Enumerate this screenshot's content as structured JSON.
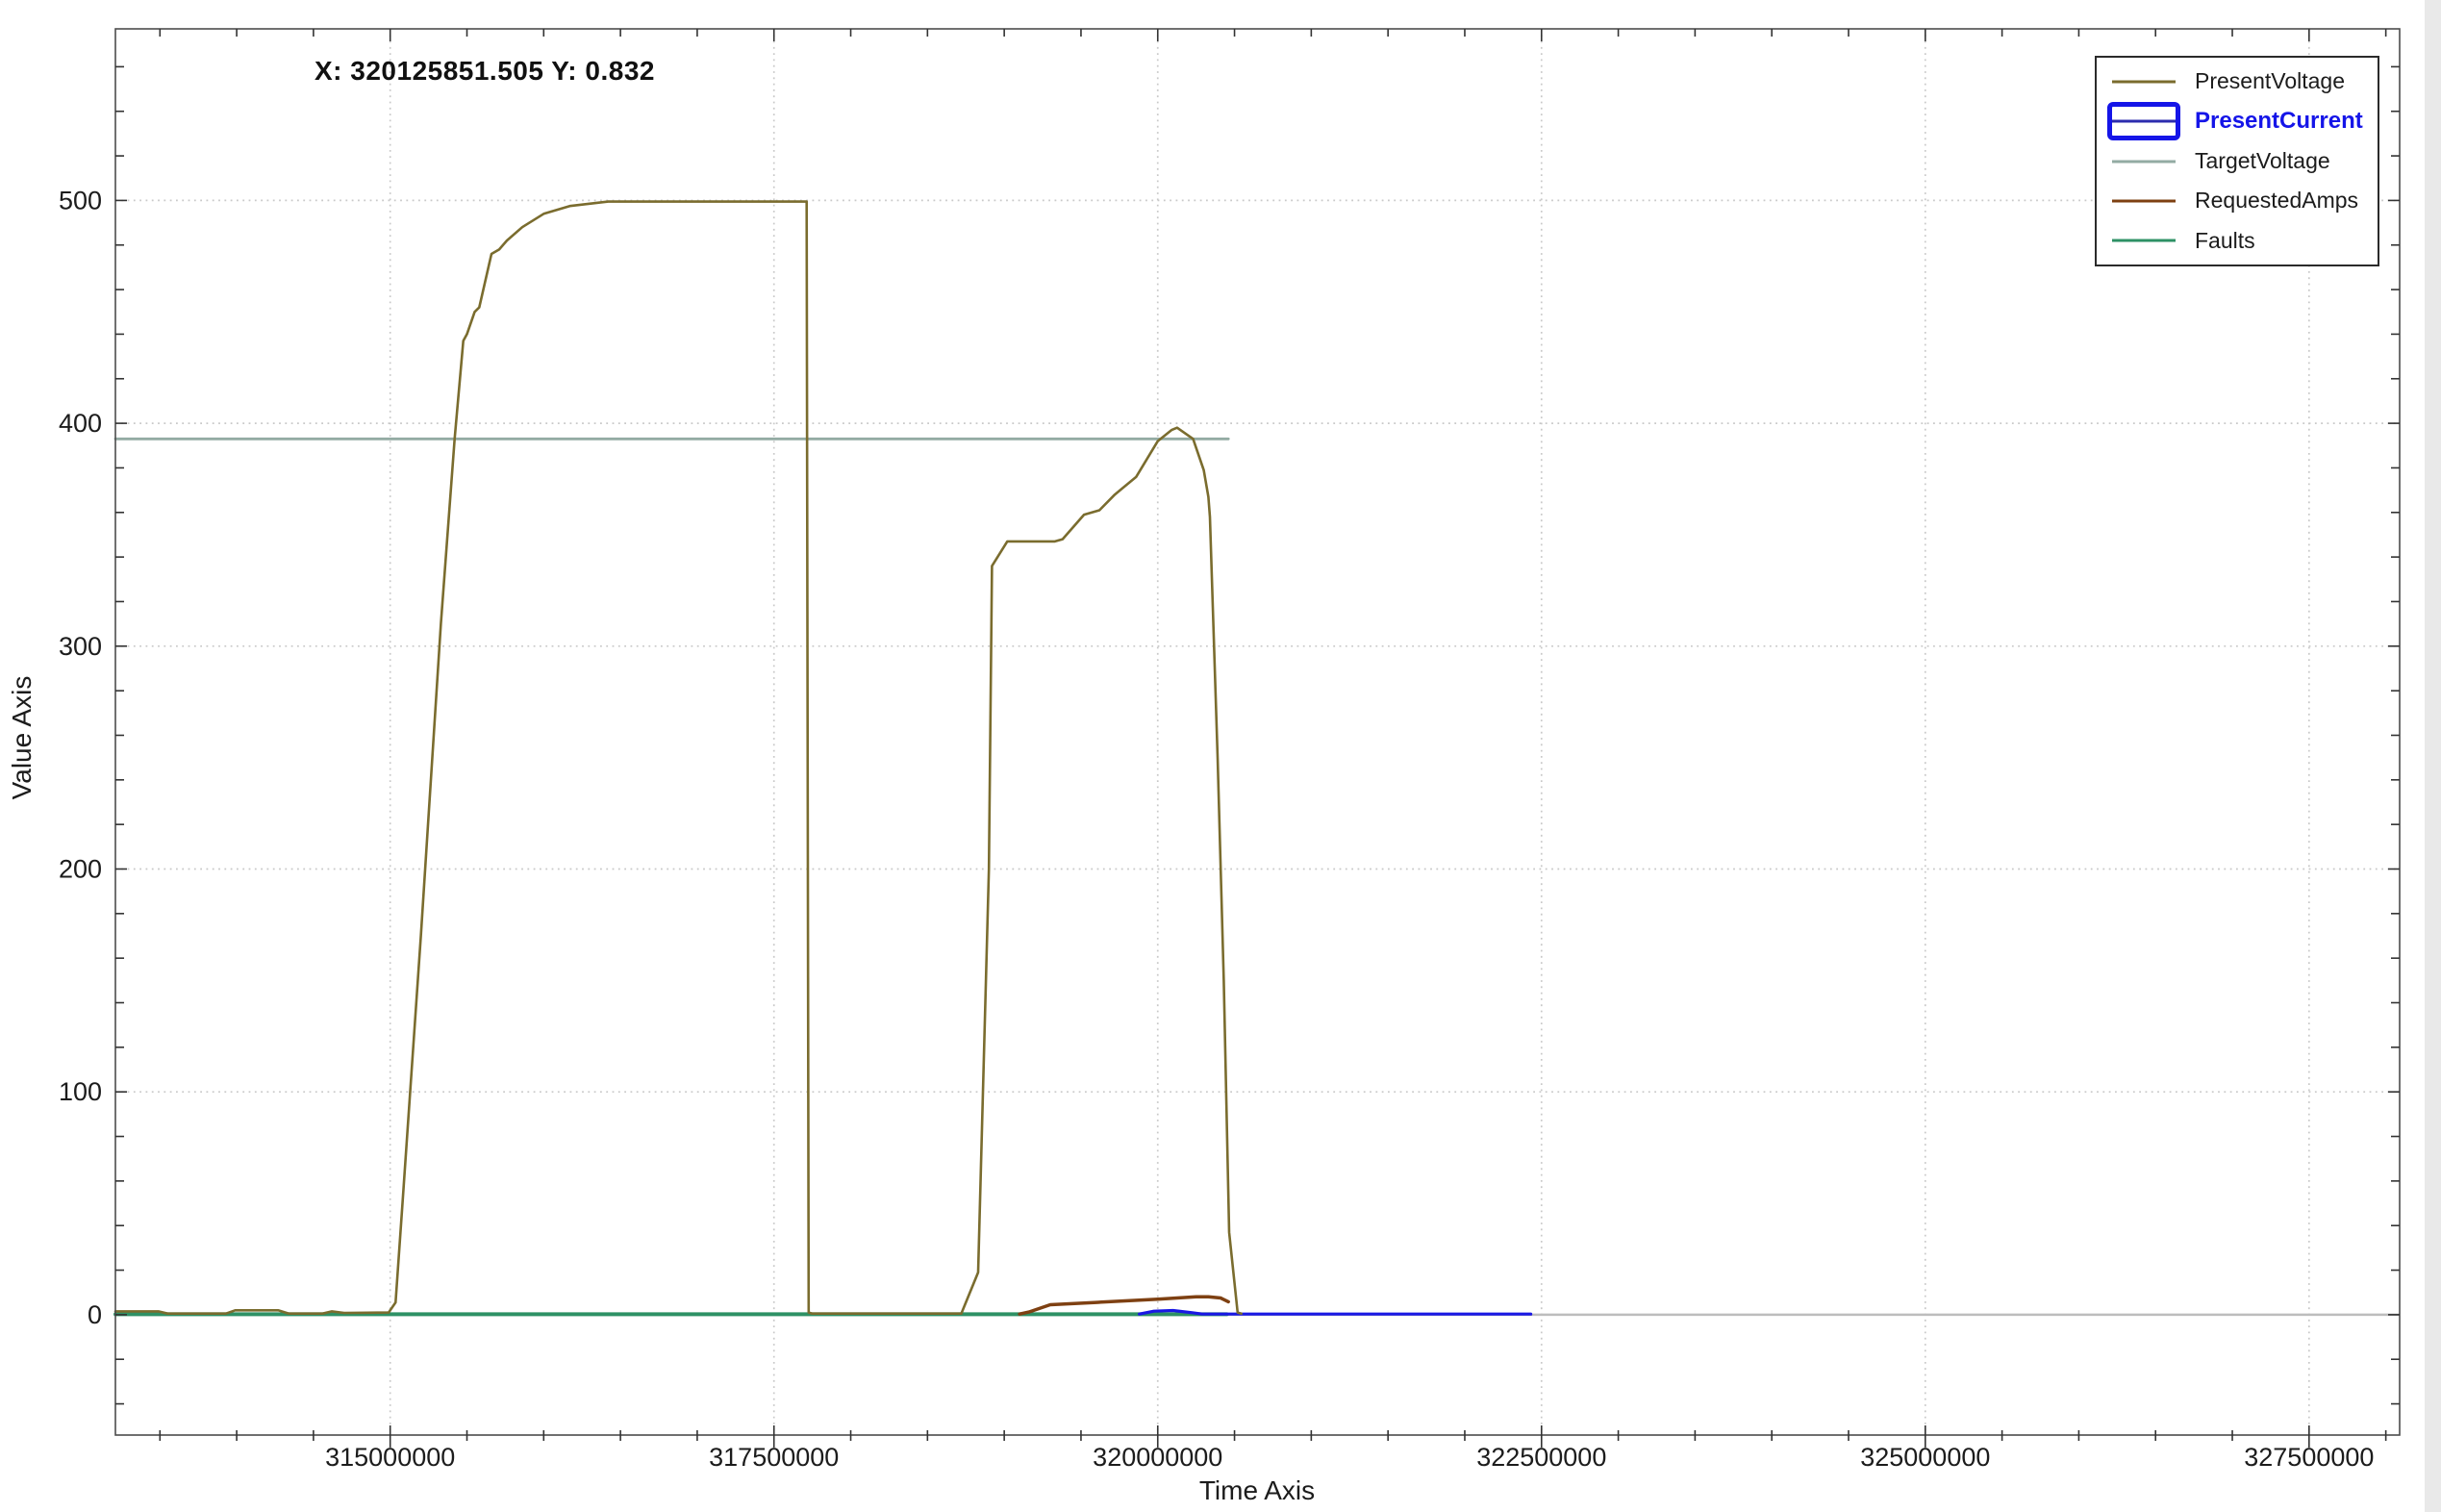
{
  "title": {
    "cursor_readout": "X: 320125851.505 Y: 0.832"
  },
  "legend": {
    "position": "top-right",
    "selected_box_color": "#1515e8",
    "selected_inner_line_color": "#2b2bae",
    "selected_text_color": "#1515e8",
    "items": [
      {
        "label": "PresentVoltage",
        "color": "#7a6c2e",
        "selected": false
      },
      {
        "label": "PresentCurrent",
        "color": "#2b2bae",
        "selected": true
      },
      {
        "label": "TargetVoltage",
        "color": "#93aba3",
        "selected": false
      },
      {
        "label": "RequestedAmps",
        "color": "#7e4012",
        "selected": false
      },
      {
        "label": "Faults",
        "color": "#2e9165",
        "selected": false
      }
    ]
  },
  "chart_data": {
    "type": "line",
    "xlabel": "Time Axis",
    "ylabel": "Value Axis",
    "x_range": [
      313210000,
      328090000
    ],
    "y_range": [
      -54,
      577
    ],
    "x_ticks": [
      315000000,
      317500000,
      320000000,
      322500000,
      325000000,
      327500000
    ],
    "y_ticks": [
      0,
      100,
      200,
      300,
      400,
      500
    ],
    "x_minor_step": 500000,
    "y_minor_step": 20,
    "grid": "major-dotted",
    "zero_line_color": "#bdbdbd",
    "grid_color": "#c9c9c9",
    "border_color": "#4d4d4d",
    "tick_color": "#333333",
    "tick_label_color": "#1c1c1c",
    "legend_position": "top-right",
    "series": [
      {
        "name": "TargetVoltage",
        "color": "#93aba3",
        "width": 2.8,
        "points": [
          [
            313210000,
            393
          ],
          [
            320460000,
            393
          ]
        ]
      },
      {
        "name": "Faults",
        "color": "#2e9165",
        "width": 4,
        "points": [
          [
            313210000,
            0.2
          ],
          [
            320450000,
            0.2
          ]
        ]
      },
      {
        "name": "RequestedAmps",
        "color": "#7e4012",
        "width": 3.5,
        "points": [
          [
            319100000,
            0.3
          ],
          [
            319160000,
            1.2
          ],
          [
            319300000,
            4.5
          ],
          [
            319600000,
            5.5
          ],
          [
            320000000,
            7
          ],
          [
            320250000,
            8
          ],
          [
            320330000,
            8
          ],
          [
            320410000,
            7.5
          ],
          [
            320460000,
            5.8
          ]
        ]
      },
      {
        "name": "PresentCurrent",
        "color": "#1a18e4",
        "width": 3.2,
        "points": [
          [
            319880000,
            0.3
          ],
          [
            319975000,
            1.6
          ],
          [
            320100000,
            1.9
          ],
          [
            320225000,
            0.9
          ],
          [
            320290000,
            0.3
          ],
          [
            322430000,
            0.3
          ]
        ]
      },
      {
        "name": "PresentVoltage",
        "color": "#7a6c2e",
        "width": 2.6,
        "points": [
          [
            313210000,
            1.5
          ],
          [
            313490000,
            1.5
          ],
          [
            313550000,
            0.5
          ],
          [
            313930000,
            0.5
          ],
          [
            313990000,
            2
          ],
          [
            314270000,
            2
          ],
          [
            314340000,
            0.5
          ],
          [
            314560000,
            0.5
          ],
          [
            314620000,
            1.5
          ],
          [
            314700000,
            0.8
          ],
          [
            314990000,
            1
          ],
          [
            315020000,
            4
          ],
          [
            315035000,
            5.5
          ],
          [
            315080000,
            50
          ],
          [
            315200000,
            170
          ],
          [
            315330000,
            310
          ],
          [
            315420000,
            393
          ],
          [
            315476000,
            437
          ],
          [
            315500000,
            440
          ],
          [
            315550000,
            450
          ],
          [
            315580000,
            452
          ],
          [
            315660000,
            476
          ],
          [
            315710000,
            478
          ],
          [
            315760000,
            482
          ],
          [
            315860000,
            488
          ],
          [
            316000000,
            494
          ],
          [
            316170000,
            497.5
          ],
          [
            316420000,
            499.5
          ],
          [
            317713000,
            499.5
          ],
          [
            317726000,
            1
          ],
          [
            317750000,
            0.5
          ],
          [
            318720000,
            0.5
          ],
          [
            318830000,
            19
          ],
          [
            318900000,
            200
          ],
          [
            318920000,
            336
          ],
          [
            319020000,
            347
          ],
          [
            319330000,
            347
          ],
          [
            319380000,
            348
          ],
          [
            319520000,
            359
          ],
          [
            319620000,
            361
          ],
          [
            319720000,
            368
          ],
          [
            319860000,
            376
          ],
          [
            320000000,
            392
          ],
          [
            320090000,
            397
          ],
          [
            320126000,
            398
          ],
          [
            320230000,
            393
          ],
          [
            320300000,
            379
          ],
          [
            320330000,
            367
          ],
          [
            320340000,
            358
          ],
          [
            320390000,
            250
          ],
          [
            320430000,
            150
          ],
          [
            320465000,
            37
          ],
          [
            320520000,
            1
          ],
          [
            320545000,
            0.5
          ]
        ]
      }
    ]
  }
}
